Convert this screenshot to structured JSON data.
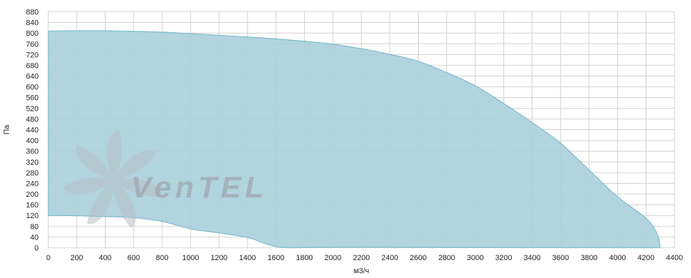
{
  "chart_data": {
    "type": "area",
    "xlabel": "м3/ч",
    "ylabel": "Па",
    "xlim": [
      0,
      4400
    ],
    "ylim": [
      0,
      880
    ],
    "x_ticks": [
      0,
      200,
      400,
      600,
      800,
      1000,
      1200,
      1400,
      1600,
      1800,
      2000,
      2200,
      2400,
      2600,
      2800,
      3000,
      3200,
      3400,
      3600,
      3800,
      4000,
      4200,
      4400
    ],
    "y_ticks": [
      0,
      40,
      80,
      120,
      160,
      200,
      240,
      280,
      320,
      360,
      400,
      440,
      480,
      520,
      560,
      600,
      640,
      680,
      720,
      760,
      800,
      840,
      880
    ],
    "grid": true,
    "colors": {
      "fill": "#a9cfdc",
      "stroke": "#6fb3c9",
      "grid": "#cfcfcf",
      "watermark": "#9fa8ad"
    },
    "watermark_text": "VenTEL",
    "series": [
      {
        "upper_curve": [
          [
            0,
            808
          ],
          [
            200,
            809
          ],
          [
            400,
            809
          ],
          [
            600,
            807
          ],
          [
            800,
            804
          ],
          [
            1000,
            798
          ],
          [
            1200,
            792
          ],
          [
            1400,
            786
          ],
          [
            1600,
            779
          ],
          [
            1800,
            770
          ],
          [
            2000,
            759
          ],
          [
            2200,
            742
          ],
          [
            2400,
            721
          ],
          [
            2600,
            695
          ],
          [
            2800,
            653
          ],
          [
            3000,
            604
          ],
          [
            3200,
            538
          ],
          [
            3400,
            467
          ],
          [
            3600,
            390
          ],
          [
            3800,
            290
          ],
          [
            4000,
            190
          ],
          [
            4200,
            110
          ],
          [
            4280,
            50
          ],
          [
            4300,
            0
          ]
        ],
        "lower_curve": [
          [
            0,
            120
          ],
          [
            200,
            119
          ],
          [
            400,
            116
          ],
          [
            600,
            112
          ],
          [
            800,
            98
          ],
          [
            1000,
            70
          ],
          [
            1200,
            55
          ],
          [
            1400,
            38
          ],
          [
            1500,
            20
          ],
          [
            1600,
            4
          ],
          [
            1700,
            0
          ],
          [
            1800,
            1
          ],
          [
            2000,
            2
          ],
          [
            2400,
            2
          ],
          [
            3000,
            1
          ],
          [
            4000,
            0
          ],
          [
            4300,
            0
          ]
        ]
      }
    ]
  }
}
